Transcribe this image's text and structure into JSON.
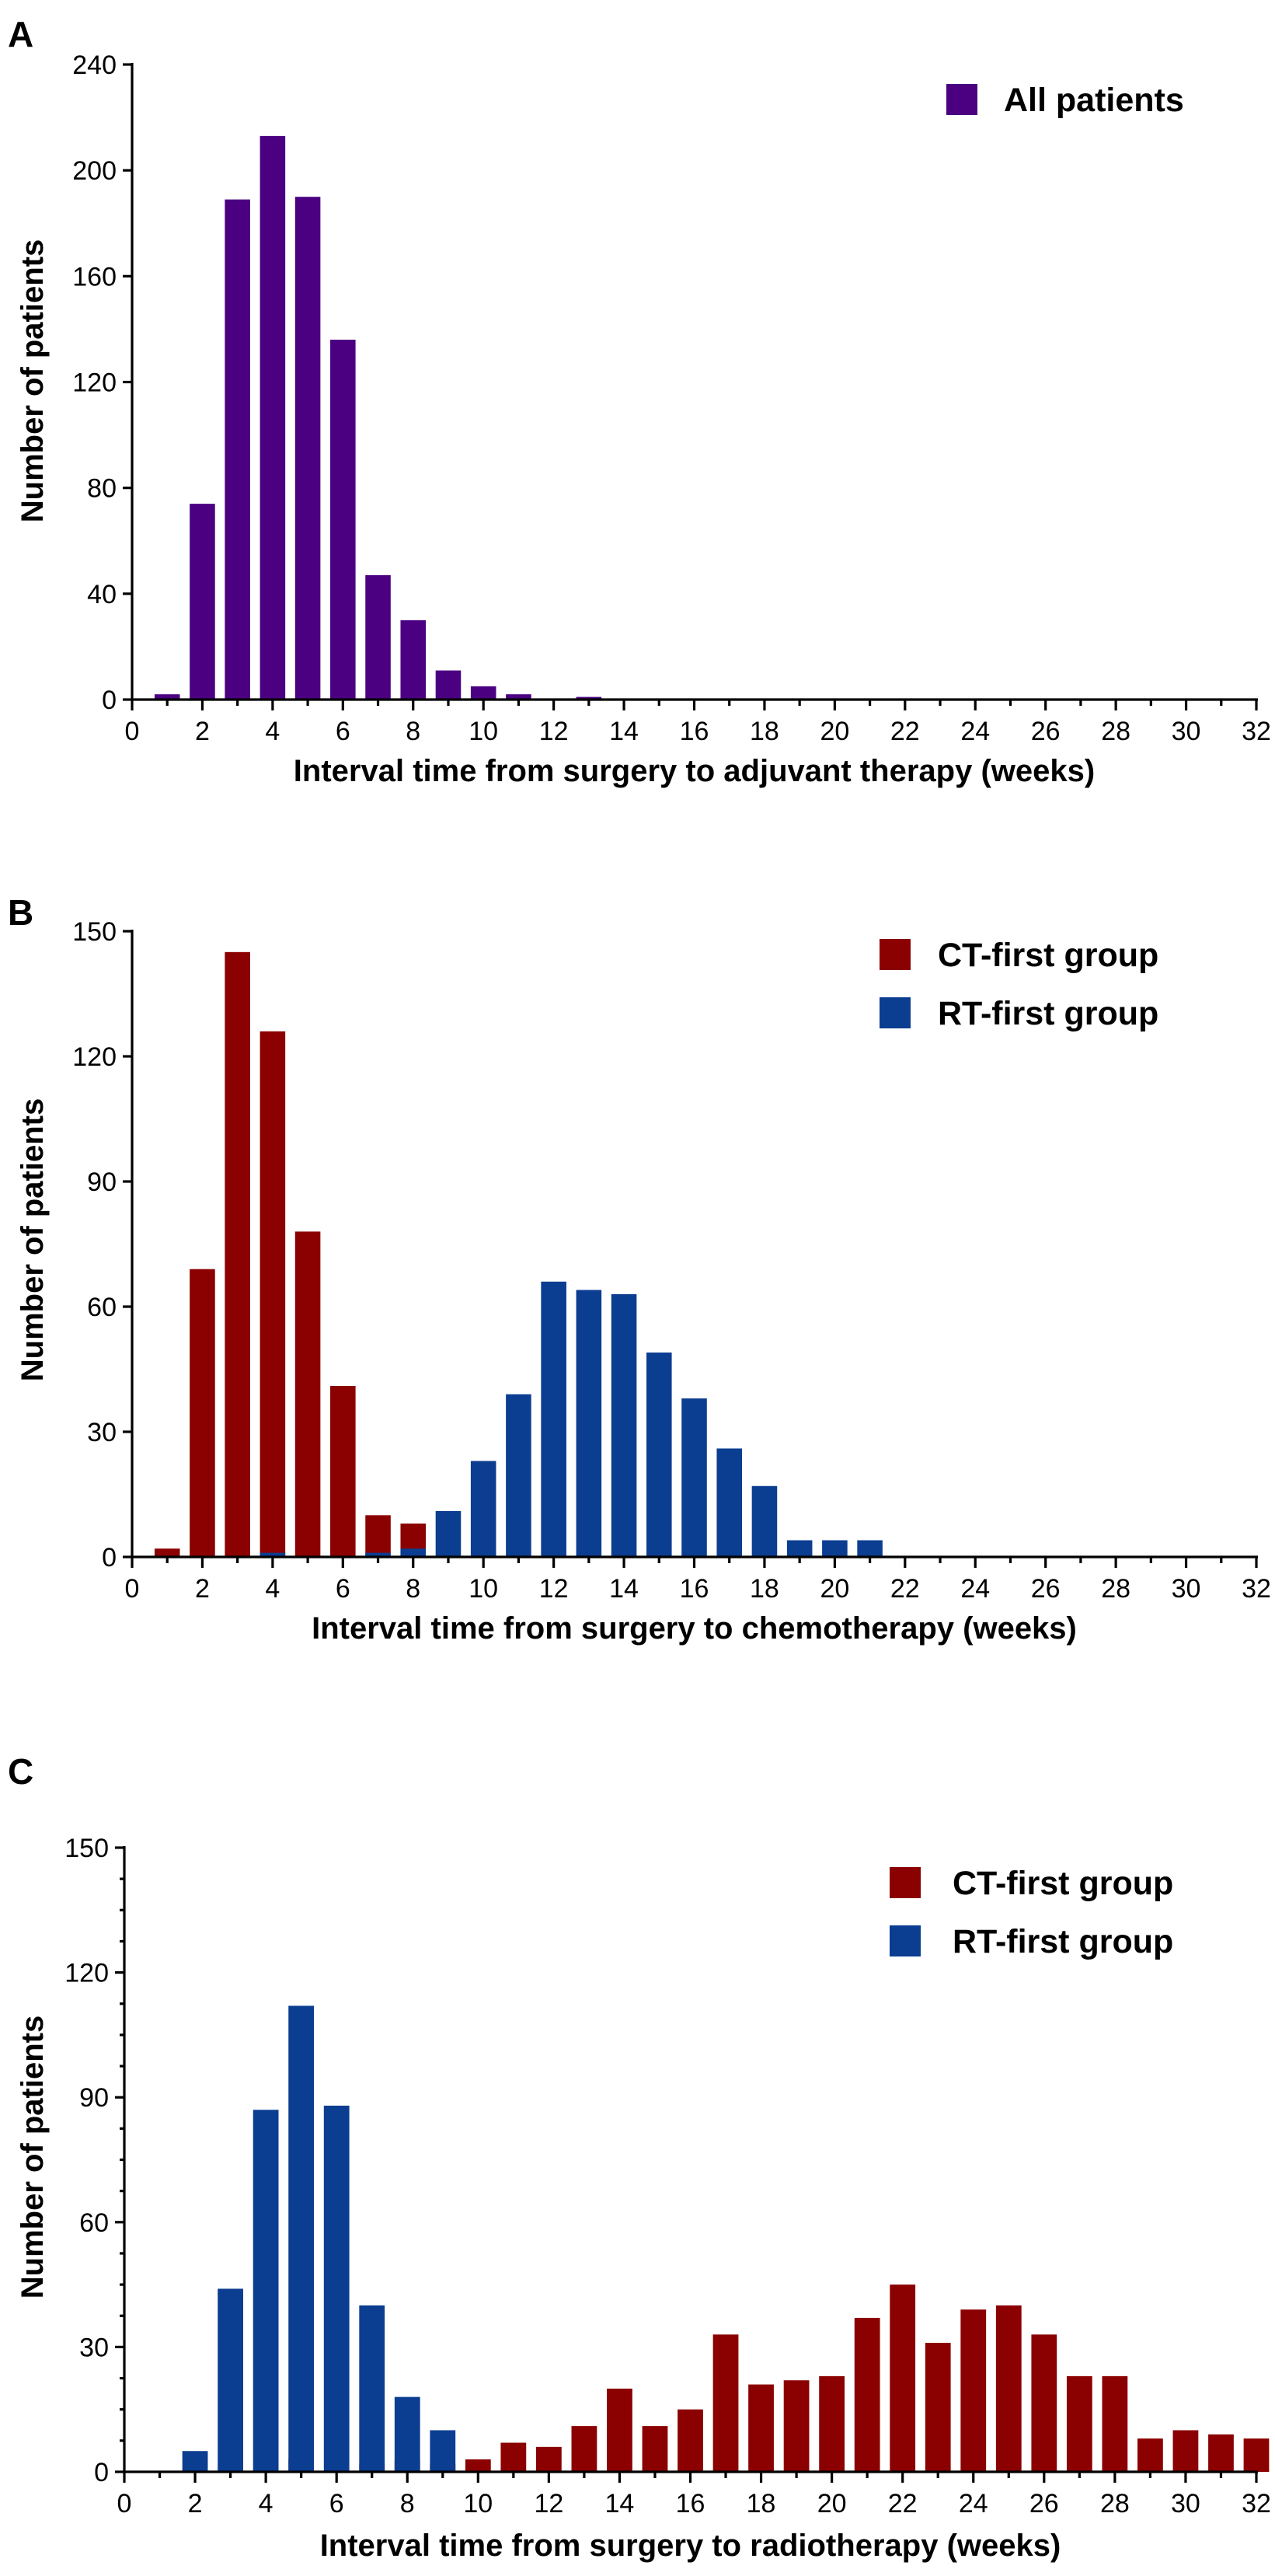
{
  "chart_data": [
    {
      "panel": "A",
      "type": "bar",
      "xlabel": "Interval time from surgery to adjuvant therapy  (weeks)",
      "ylabel": "Number of patients",
      "xlim": [
        0,
        32
      ],
      "ylim": [
        0,
        240
      ],
      "x_ticks": [
        0,
        2,
        4,
        6,
        8,
        10,
        12,
        14,
        16,
        18,
        20,
        22,
        24,
        26,
        28,
        30,
        32
      ],
      "y_ticks": [
        0,
        40,
        80,
        120,
        160,
        200,
        240
      ],
      "legend_position": "top-right",
      "series": [
        {
          "name": "All patients",
          "color": "#4B0082",
          "x": [
            1,
            2,
            3,
            4,
            5,
            6,
            7,
            8,
            9,
            10,
            11,
            12,
            13
          ],
          "values": [
            2,
            74,
            189,
            213,
            190,
            136,
            47,
            30,
            11,
            5,
            2,
            0,
            1
          ]
        }
      ]
    },
    {
      "panel": "B",
      "type": "bar",
      "xlabel": "Interval time from surgery to chemotherapy  (weeks)",
      "ylabel": "Number of patients",
      "xlim": [
        0,
        32
      ],
      "ylim": [
        0,
        150
      ],
      "x_ticks": [
        0,
        2,
        4,
        6,
        8,
        10,
        12,
        14,
        16,
        18,
        20,
        22,
        24,
        26,
        28,
        30,
        32
      ],
      "y_ticks": [
        0,
        30,
        60,
        90,
        120,
        150
      ],
      "legend_position": "top-right",
      "series": [
        {
          "name": "CT-first group",
          "color": "#8B0000",
          "x": [
            1,
            2,
            3,
            4,
            5,
            6,
            7,
            8
          ],
          "values": [
            2,
            69,
            145,
            126,
            78,
            41,
            10,
            8
          ]
        },
        {
          "name": "RT-first group",
          "color": "#0B3D91",
          "x": [
            4,
            7,
            8,
            9,
            10,
            11,
            12,
            13,
            14,
            15,
            16,
            17,
            18,
            19,
            20,
            21
          ],
          "values": [
            1,
            1,
            2,
            11,
            23,
            39,
            66,
            64,
            63,
            49,
            38,
            26,
            17,
            4,
            4,
            4
          ]
        }
      ]
    },
    {
      "panel": "C",
      "type": "bar",
      "xlabel": "Interval time from surgery to radiotherapy (weeks)",
      "ylabel": "Number of patients",
      "xlim": [
        0,
        32
      ],
      "ylim": [
        0,
        150
      ],
      "x_ticks": [
        0,
        2,
        4,
        6,
        8,
        10,
        12,
        14,
        16,
        18,
        20,
        22,
        24,
        26,
        28,
        30,
        32
      ],
      "y_ticks": [
        0,
        30,
        60,
        90,
        120,
        150
      ],
      "legend_position": "top-right",
      "series": [
        {
          "name": "CT-first group",
          "color": "#8B0000",
          "x": [
            5,
            7,
            8,
            9,
            10,
            11,
            12,
            13,
            14,
            15,
            16,
            17,
            18,
            19,
            20,
            21,
            22,
            23,
            24,
            25,
            26,
            27,
            28,
            29,
            30,
            31,
            32
          ],
          "values": [
            3,
            2,
            3,
            2,
            3,
            7,
            6,
            11,
            20,
            11,
            15,
            33,
            21,
            22,
            23,
            37,
            45,
            31,
            39,
            40,
            33,
            23,
            23,
            8,
            10,
            9,
            8
          ]
        },
        {
          "name": "RT-first group",
          "color": "#0B3D91",
          "x": [
            2,
            3,
            4,
            5,
            6,
            7,
            8,
            9
          ],
          "values": [
            5,
            44,
            87,
            112,
            88,
            40,
            18,
            10
          ]
        }
      ]
    }
  ]
}
